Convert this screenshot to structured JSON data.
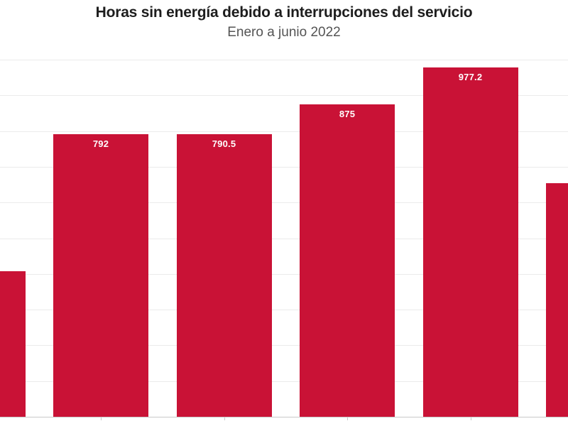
{
  "chart_data": {
    "type": "bar",
    "title": "Horas sin energía debido a interrupciones del servicio",
    "subtitle": "Enero a junio 2022",
    "xlabel": "",
    "ylabel": "",
    "ylim": [
      0,
      1000
    ],
    "gridline_step": 100,
    "grid": "horizontal",
    "legend": "none",
    "bar_color": "#c91236",
    "value_label_color": "#ffffff",
    "bars": [
      {
        "value": 408,
        "label": ""
      },
      {
        "value": 792,
        "label": "792"
      },
      {
        "value": 790.5,
        "label": "790.5"
      },
      {
        "value": 875,
        "label": "875"
      },
      {
        "value": 977.2,
        "label": "977.2"
      },
      {
        "value": 655,
        "label": ""
      }
    ]
  }
}
